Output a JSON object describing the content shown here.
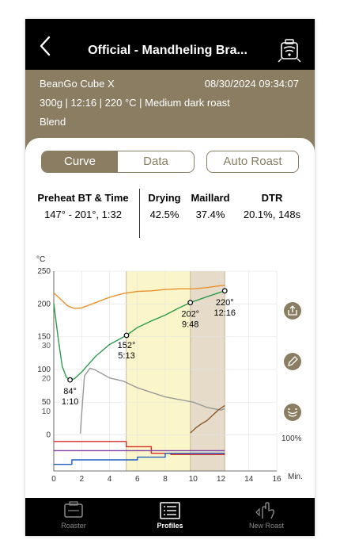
{
  "header": {
    "title": "Official - Mandheling Bra...",
    "back_icon": "chevron-left-icon",
    "device_icon": "roaster-connect-icon"
  },
  "info": {
    "device": "BeanGo Cube X",
    "datetime": "08/30/2024 09:34:07",
    "line2": "300g  |  12:16  |  220 °C  |  Medium dark roast",
    "line3": "Blend"
  },
  "segment": {
    "tabs": [
      "Curve",
      "Data"
    ],
    "active": "Curve"
  },
  "auto_roast_label": "Auto Roast",
  "stats": [
    {
      "header": "Preheat BT & Time",
      "value": "147° - 201°, 1:32"
    },
    {
      "header": "Drying",
      "value": "42.5%"
    },
    {
      "header": "Maillard",
      "value": "37.4%"
    },
    {
      "header": "DTR",
      "value": "20.1%, 148s"
    }
  ],
  "chart_data": {
    "type": "line",
    "ylabel": "°C",
    "xlabel": "Min.",
    "xlim": [
      0,
      16
    ],
    "x_ticks": [
      0,
      2,
      4,
      6,
      8,
      10,
      12,
      14,
      16
    ],
    "y_ticks_temp": [
      250,
      200,
      150,
      100,
      50,
      0
    ],
    "y_ticks_ror": [
      30,
      20,
      10
    ],
    "right_label": "100%",
    "phases": [
      {
        "name": "drying",
        "range": [
          0,
          5.2
        ],
        "color": "#ffffff"
      },
      {
        "name": "maillard",
        "range": [
          5.2,
          9.8
        ],
        "color": "#fbf6c9"
      },
      {
        "name": "development",
        "range": [
          9.8,
          12.27
        ],
        "color": "#e6dbc8"
      }
    ],
    "markers": [
      {
        "x": 1.17,
        "y": 84,
        "label": [
          "84°",
          "1:10"
        ]
      },
      {
        "x": 5.22,
        "y": 152,
        "label": [
          "152°",
          "5:13"
        ]
      },
      {
        "x": 9.8,
        "y": 202,
        "label": [
          "202°",
          "9:48"
        ]
      },
      {
        "x": 12.27,
        "y": 220,
        "label": [
          "220°",
          "12:16"
        ]
      }
    ],
    "series": [
      {
        "color": "#e8912c",
        "x": [
          0,
          0.5,
          1,
          1.5,
          2,
          2.5,
          3,
          4,
          5,
          6,
          7,
          8,
          9,
          10,
          11,
          12,
          12.27
        ],
        "y": [
          217,
          207,
          197,
          193,
          194,
          198,
          202,
          210,
          216,
          219,
          220,
          222,
          223,
          223,
          225,
          228,
          228
        ]
      },
      {
        "color": "#2e9b4c",
        "x": [
          0,
          0.3,
          0.6,
          0.9,
          1.17,
          1.5,
          2,
          2.5,
          3,
          4,
          5.22,
          6,
          7,
          8,
          9,
          9.8,
          11,
          12.27
        ],
        "y": [
          201,
          150,
          105,
          88,
          84,
          86,
          96,
          108,
          120,
          138,
          152,
          164,
          174,
          183,
          194,
          202,
          211,
          220
        ]
      },
      {
        "color": "#999999",
        "x": [
          1.9,
          2.2,
          2.6,
          3,
          4,
          5,
          6,
          7,
          8,
          9,
          10,
          11,
          12,
          12.27
        ],
        "y": [
          2,
          90,
          102,
          99,
          87,
          82,
          72,
          65,
          58,
          54,
          50,
          42,
          38,
          40
        ]
      },
      {
        "color": "#8b5a2b",
        "x": [
          9.8,
          10.2,
          10.6,
          11,
          11.4,
          11.8,
          12.27
        ],
        "y": [
          3,
          11,
          17,
          22,
          30,
          38,
          45
        ]
      },
      {
        "color": "#d62b2b",
        "x": [
          0,
          5.2,
          5.2,
          7,
          7,
          8.4,
          8.4,
          12.27
        ],
        "y": [
          -10,
          -10,
          -18,
          -18,
          -28,
          -28,
          -30,
          -30
        ]
      },
      {
        "color": "#7b3fa0",
        "x": [
          0,
          12.27
        ],
        "y": [
          -24,
          -24
        ]
      },
      {
        "color": "#1f5fbf",
        "x": [
          0,
          1.3,
          1.3,
          6,
          6,
          8,
          8,
          12.27
        ],
        "y": [
          -45,
          -45,
          -38,
          -38,
          -34,
          -34,
          -28,
          -28
        ]
      }
    ]
  },
  "side_actions": [
    "share-icon",
    "edit-icon",
    "rate-icon"
  ],
  "tabbar": [
    {
      "label": "Roaster",
      "icon": "roaster-icon",
      "active": false
    },
    {
      "label": "Profiles",
      "icon": "profiles-icon",
      "active": true
    },
    {
      "label": "New Roast",
      "icon": "new-roast-icon",
      "active": false
    }
  ]
}
